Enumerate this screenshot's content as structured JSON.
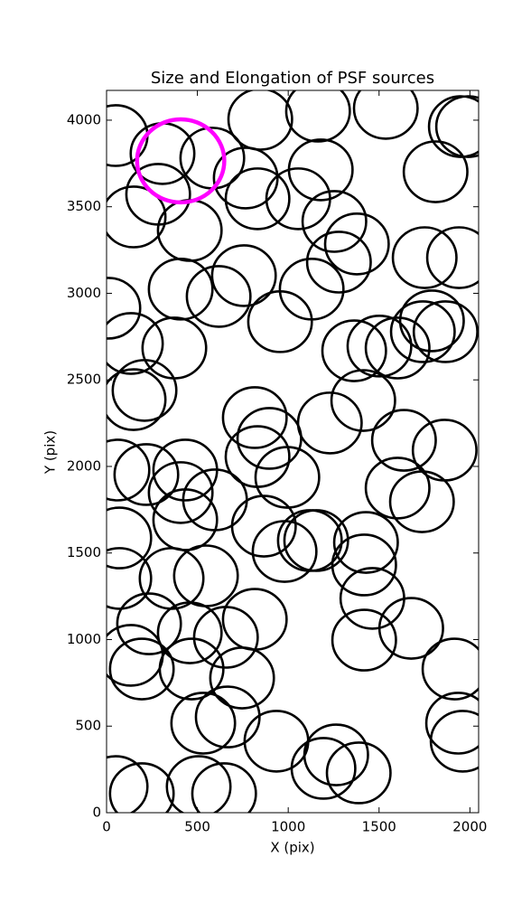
{
  "chart_data": {
    "type": "scatter",
    "title": "Size and Elongation of PSF sources",
    "x_label": "X (pix)",
    "y_label": "Y (pix)",
    "xlim": [
      0,
      2048
    ],
    "ylim": [
      0,
      4172
    ],
    "xticks": [
      0,
      500,
      1000,
      1500,
      2000
    ],
    "yticks": [
      0,
      500,
      1000,
      1500,
      2000,
      2500,
      3000,
      3500,
      4000
    ],
    "marker_radius": 175,
    "series": [
      {
        "color": "#000000",
        "x": [
          50,
          308,
          284,
          149,
          458,
          582,
          766,
          831,
          846,
          1164,
          1179,
          1055,
          1254,
          1378,
          1279,
          1537,
          1811,
          1950,
          1990,
          1751,
          1940,
          10,
          134,
          373,
          408,
          617,
          756,
          955,
          1129,
          1363,
          1502,
          1602,
          1741,
          1791,
          1866,
          209,
          149,
          1413,
          816,
          896,
          831,
          995,
          1229,
          1637,
          1861,
          1602,
          1736,
          60,
          219,
          433,
          408,
          433,
          597,
          70,
          70,
          358,
          547,
          980,
          1154,
          1428,
          1418,
          1463,
          1418,
          1677,
          234,
          134,
          194,
          458,
          468,
          657,
          816,
          746,
          532,
          667,
          935,
          1264,
          1194,
          1388,
          1915,
          1935,
          1960,
          50,
          194,
          507,
          647,
          866,
          1119
        ],
        "y": [
          3911,
          3807,
          3572,
          3441,
          3363,
          3781,
          3666,
          3546,
          4005,
          4052,
          3713,
          3546,
          3415,
          3285,
          3180,
          4068,
          3702,
          3963,
          3963,
          3206,
          3206,
          2914,
          2710,
          2684,
          3024,
          2982,
          3102,
          2836,
          3024,
          2668,
          2695,
          2684,
          2778,
          2841,
          2778,
          2439,
          2386,
          2381,
          2282,
          2162,
          2057,
          1937,
          2251,
          2151,
          2094,
          1875,
          1796,
          1979,
          1953,
          1979,
          1849,
          1692,
          1807,
          1587,
          1353,
          1353,
          1368,
          1509,
          1572,
          1561,
          1431,
          1238,
          997,
          1065,
          1091,
          909,
          830,
          1039,
          830,
          1013,
          1117,
          778,
          517,
          553,
          413,
          334,
          256,
          230,
          830,
          517,
          413,
          151,
          110,
          151,
          110,
          1655,
          1572
        ]
      },
      {
        "color": "#ff00ff",
        "x": [
          408
        ],
        "y": [
          3765
        ],
        "radius": 240
      }
    ]
  }
}
